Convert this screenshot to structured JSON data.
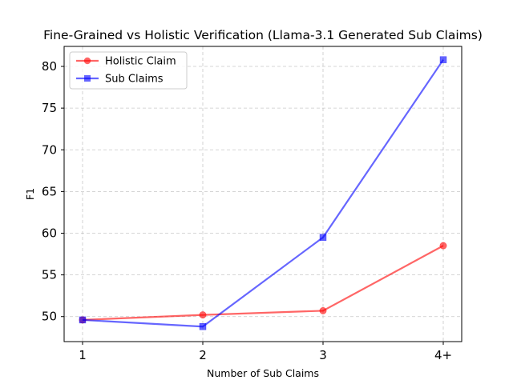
{
  "chart_data": {
    "type": "line",
    "title": "Fine-Grained vs Holistic Verification (Llama-3.1 Generated Sub Claims)",
    "xlabel": "Number of Sub Claims",
    "ylabel": "F1",
    "categories": [
      "1",
      "2",
      "3",
      "4+"
    ],
    "ylim": [
      47.0,
      82.4
    ],
    "yticks": [
      50,
      55,
      60,
      65,
      70,
      75,
      80
    ],
    "grid": true,
    "legend_position": "upper-left",
    "series": [
      {
        "name": "Holistic Claim",
        "color": "#ff0000",
        "marker": "circle",
        "values": [
          49.6,
          50.2,
          50.7,
          58.5
        ]
      },
      {
        "name": "Sub Claims",
        "color": "#0000ff",
        "marker": "square",
        "values": [
          49.6,
          48.8,
          59.5,
          80.8
        ]
      }
    ]
  }
}
